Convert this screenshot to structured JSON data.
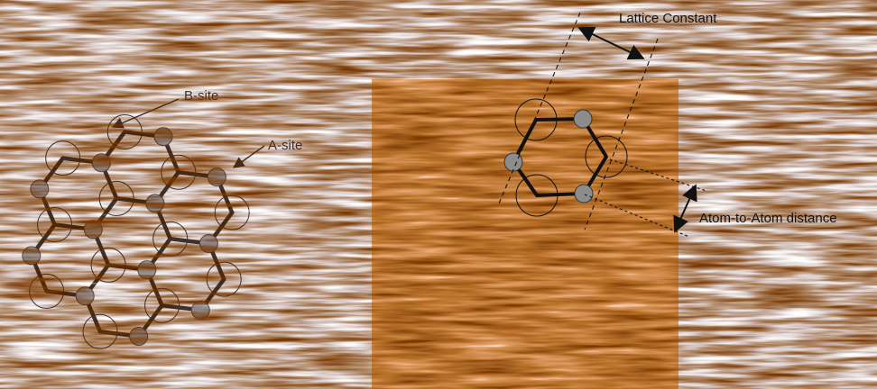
{
  "labels": {
    "b_site": "B-site",
    "a_site": "A-site",
    "lattice_constant": "Lattice Constant",
    "atom_distance": "Atom-to-Atom distance"
  },
  "colors": {
    "bond": "#111111",
    "a_atom_fill": "#8c8c8c",
    "b_site_ring": "#111111",
    "stm_base": "#e59540",
    "stm_dark": "#7a3806",
    "stm_light": "#fffaf2"
  }
}
